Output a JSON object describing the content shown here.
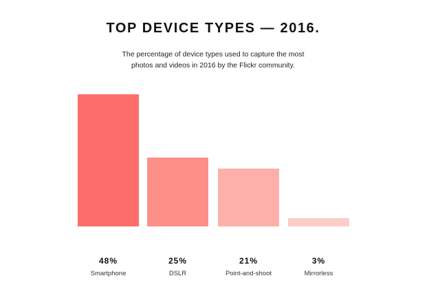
{
  "chart_data": {
    "type": "bar",
    "title": "TOP DEVICE TYPES — 2016.",
    "subtitle_lines": [
      "The percentage of device types used to capture the most",
      "photos and videos in 2016 by the Flickr community."
    ],
    "categories": [
      "Smartphone",
      "DSLR",
      "Point-and-shoot",
      "Mirrorless"
    ],
    "values": [
      48,
      25,
      21,
      3
    ],
    "value_labels": [
      "48%",
      "25%",
      "21%",
      "3%"
    ],
    "ylim": [
      0,
      48
    ],
    "grid": false,
    "colors": [
      "#fd6e6a",
      "#fc8f88",
      "#fdb0aa",
      "#fdccc7"
    ]
  }
}
